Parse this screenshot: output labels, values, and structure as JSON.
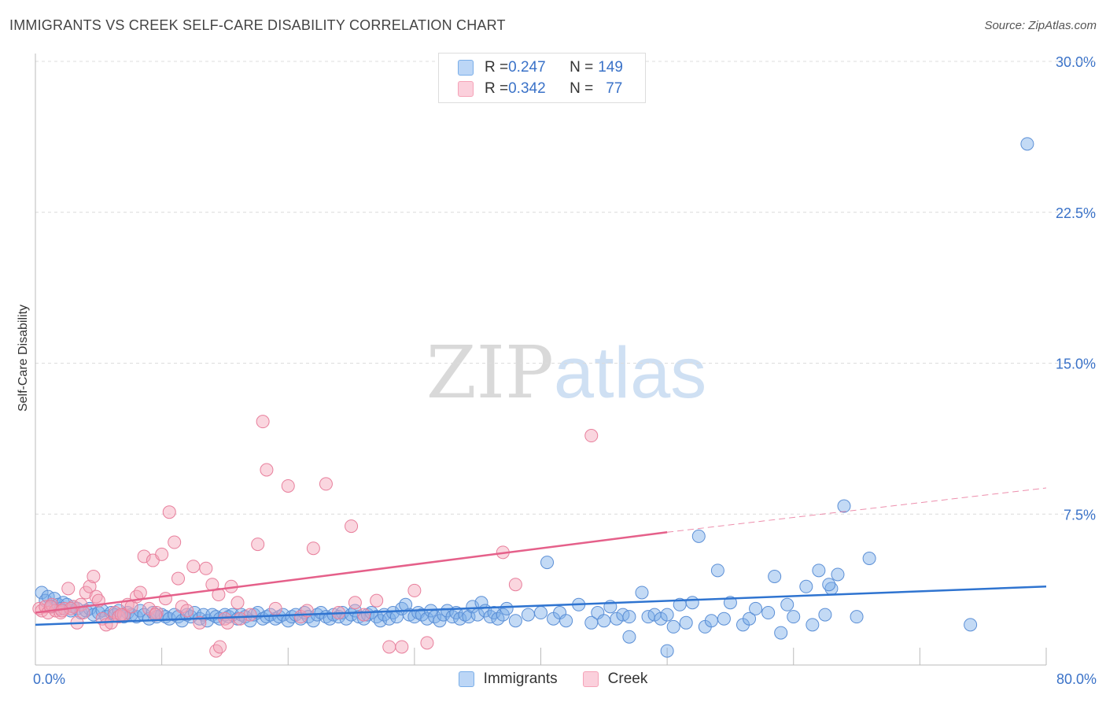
{
  "title": "IMMIGRANTS VS CREEK SELF-CARE DISABILITY CORRELATION CHART",
  "source": "Source: ZipAtlas.com",
  "watermark": {
    "zip": "ZIP",
    "atlas": "atlas"
  },
  "legend_top": [
    {
      "r_label": "R = ",
      "r_value": "0.247",
      "n_label": "N = ",
      "n_value": "149"
    },
    {
      "r_label": "R = ",
      "r_value": "0.342",
      "n_label": "N = ",
      "n_value": "77"
    }
  ],
  "chart_data": {
    "type": "scatter",
    "ylabel": "Self-Care Disability",
    "xlim": [
      0,
      80
    ],
    "ylim": [
      0,
      30
    ],
    "x_tick_labels": [
      {
        "value": 0,
        "label": "0.0%"
      },
      {
        "value": 80,
        "label": "80.0%"
      }
    ],
    "y_tick_labels": [
      {
        "value": 7.5,
        "label": "7.5%"
      },
      {
        "value": 15,
        "label": "15.0%"
      },
      {
        "value": 22.5,
        "label": "22.5%"
      },
      {
        "value": 30,
        "label": "30.0%"
      }
    ],
    "grid": true,
    "legend_position": "bottom",
    "series": [
      {
        "name": "Immigrants",
        "color": "#7aaee8",
        "stroke": "#5b8fd6",
        "trend": {
          "x0": 0,
          "y0": 2.0,
          "x1": 80,
          "y1": 3.9,
          "color": "#2f74d0"
        },
        "points": [
          [
            0.5,
            3.6
          ],
          [
            0.8,
            3.2
          ],
          [
            1,
            3.4
          ],
          [
            1.3,
            2.9
          ],
          [
            1.5,
            3.3
          ],
          [
            1.8,
            3.0
          ],
          [
            2,
            2.8
          ],
          [
            2.2,
            3.1
          ],
          [
            2.5,
            3.0
          ],
          [
            2.8,
            2.7
          ],
          [
            3,
            2.9
          ],
          [
            3.3,
            2.8
          ],
          [
            3.6,
            2.6
          ],
          [
            4,
            2.7
          ],
          [
            4.3,
            2.8
          ],
          [
            4.6,
            2.5
          ],
          [
            5,
            2.6
          ],
          [
            5.3,
            2.7
          ],
          [
            5.6,
            2.4
          ],
          [
            6,
            2.6
          ],
          [
            6.3,
            2.5
          ],
          [
            6.6,
            2.7
          ],
          [
            7,
            2.4
          ],
          [
            7.3,
            2.6
          ],
          [
            7.6,
            2.5
          ],
          [
            8,
            2.4
          ],
          [
            8.3,
            2.7
          ],
          [
            8.6,
            2.5
          ],
          [
            9,
            2.3
          ],
          [
            9.3,
            2.6
          ],
          [
            9.6,
            2.4
          ],
          [
            10,
            2.5
          ],
          [
            10.3,
            2.4
          ],
          [
            10.6,
            2.3
          ],
          [
            11,
            2.5
          ],
          [
            11.3,
            2.4
          ],
          [
            11.6,
            2.2
          ],
          [
            12,
            2.5
          ],
          [
            12.3,
            2.4
          ],
          [
            12.6,
            2.6
          ],
          [
            13,
            2.3
          ],
          [
            13.3,
            2.5
          ],
          [
            13.6,
            2.2
          ],
          [
            14,
            2.5
          ],
          [
            14.3,
            2.4
          ],
          [
            14.6,
            2.3
          ],
          [
            15,
            2.5
          ],
          [
            15.3,
            2.4
          ],
          [
            15.6,
            2.5
          ],
          [
            16,
            2.3
          ],
          [
            16.3,
            2.5
          ],
          [
            16.6,
            2.4
          ],
          [
            17,
            2.2
          ],
          [
            17.3,
            2.5
          ],
          [
            17.6,
            2.6
          ],
          [
            18,
            2.3
          ],
          [
            18.3,
            2.4
          ],
          [
            18.6,
            2.5
          ],
          [
            19,
            2.3
          ],
          [
            19.3,
            2.4
          ],
          [
            19.6,
            2.5
          ],
          [
            20,
            2.2
          ],
          [
            20.3,
            2.4
          ],
          [
            20.6,
            2.5
          ],
          [
            21,
            2.3
          ],
          [
            21.3,
            2.6
          ],
          [
            21.6,
            2.4
          ],
          [
            22,
            2.2
          ],
          [
            22.3,
            2.5
          ],
          [
            22.6,
            2.6
          ],
          [
            23,
            2.4
          ],
          [
            23.3,
            2.3
          ],
          [
            23.6,
            2.5
          ],
          [
            24,
            2.4
          ],
          [
            24.3,
            2.6
          ],
          [
            24.6,
            2.3
          ],
          [
            25,
            2.5
          ],
          [
            25.3,
            2.7
          ],
          [
            25.6,
            2.4
          ],
          [
            26,
            2.3
          ],
          [
            26.3,
            2.5
          ],
          [
            26.6,
            2.6
          ],
          [
            27,
            2.4
          ],
          [
            27.3,
            2.2
          ],
          [
            27.6,
            2.5
          ],
          [
            28,
            2.3
          ],
          [
            28.3,
            2.6
          ],
          [
            28.6,
            2.4
          ],
          [
            29,
            2.8
          ],
          [
            29.3,
            3.0
          ],
          [
            29.6,
            2.5
          ],
          [
            30,
            2.4
          ],
          [
            30.3,
            2.6
          ],
          [
            30.6,
            2.5
          ],
          [
            31,
            2.3
          ],
          [
            31.3,
            2.7
          ],
          [
            31.6,
            2.4
          ],
          [
            32,
            2.2
          ],
          [
            32.3,
            2.5
          ],
          [
            32.6,
            2.7
          ],
          [
            33,
            2.4
          ],
          [
            33.3,
            2.6
          ],
          [
            33.6,
            2.3
          ],
          [
            34,
            2.5
          ],
          [
            34.3,
            2.4
          ],
          [
            34.6,
            2.9
          ],
          [
            35,
            2.5
          ],
          [
            35.3,
            3.1
          ],
          [
            35.6,
            2.7
          ],
          [
            36,
            2.4
          ],
          [
            36.3,
            2.6
          ],
          [
            36.6,
            2.3
          ],
          [
            37,
            2.5
          ],
          [
            37.3,
            2.8
          ],
          [
            38,
            2.2
          ],
          [
            39,
            2.5
          ],
          [
            40,
            2.6
          ],
          [
            40.5,
            5.1
          ],
          [
            41,
            2.3
          ],
          [
            41.5,
            2.6
          ],
          [
            42,
            2.2
          ],
          [
            43,
            3.0
          ],
          [
            44,
            2.1
          ],
          [
            44.5,
            2.6
          ],
          [
            45,
            2.2
          ],
          [
            45.5,
            2.9
          ],
          [
            46,
            2.3
          ],
          [
            46.5,
            2.5
          ],
          [
            47,
            2.4
          ],
          [
            48,
            3.6
          ],
          [
            48.5,
            2.4
          ],
          [
            49,
            2.5
          ],
          [
            49.5,
            2.3
          ],
          [
            50,
            2.5
          ],
          [
            50.5,
            1.9
          ],
          [
            51,
            3.0
          ],
          [
            51.5,
            2.1
          ],
          [
            52,
            3.1
          ],
          [
            52.5,
            6.4
          ],
          [
            53,
            1.9
          ],
          [
            53.5,
            2.2
          ],
          [
            54,
            4.7
          ],
          [
            54.5,
            2.3
          ],
          [
            55,
            3.1
          ],
          [
            56,
            2.0
          ],
          [
            56.5,
            2.3
          ],
          [
            57,
            2.8
          ],
          [
            58,
            2.6
          ],
          [
            59,
            1.6
          ],
          [
            59.5,
            3.0
          ],
          [
            60,
            2.4
          ],
          [
            61,
            3.9
          ],
          [
            61.5,
            2.0
          ],
          [
            62,
            4.7
          ],
          [
            62.5,
            2.5
          ],
          [
            63,
            3.8
          ],
          [
            64,
            7.9
          ],
          [
            65,
            2.4
          ],
          [
            66,
            5.3
          ],
          [
            62.8,
            4.0
          ],
          [
            63.5,
            4.5
          ],
          [
            58.5,
            4.4
          ],
          [
            50,
            0.7
          ],
          [
            47,
            1.4
          ],
          [
            78.5,
            25.9
          ],
          [
            74,
            2.0
          ]
        ]
      },
      {
        "name": "Creek",
        "color": "#f5a3b8",
        "stroke": "#e87f9c",
        "trend": {
          "x0": 0,
          "y0": 2.6,
          "x1": 50,
          "y1": 6.6,
          "color": "#e5608a",
          "dashed_to": {
            "x": 80,
            "y": 8.8
          }
        },
        "points": [
          [
            0.3,
            2.8
          ],
          [
            0.5,
            2.7
          ],
          [
            0.8,
            2.9
          ],
          [
            1,
            2.6
          ],
          [
            1.3,
            3.0
          ],
          [
            1.6,
            2.7
          ],
          [
            2,
            2.6
          ],
          [
            2.3,
            2.8
          ],
          [
            2.6,
            3.8
          ],
          [
            3,
            2.9
          ],
          [
            3.3,
            2.1
          ],
          [
            3.6,
            3.0
          ],
          [
            4,
            3.6
          ],
          [
            4.3,
            3.9
          ],
          [
            4.6,
            4.4
          ],
          [
            4.8,
            3.4
          ],
          [
            5,
            3.2
          ],
          [
            5.3,
            2.3
          ],
          [
            5.6,
            2.0
          ],
          [
            6,
            2.1
          ],
          [
            6.3,
            2.6
          ],
          [
            6.6,
            2.4
          ],
          [
            7,
            2.5
          ],
          [
            7.3,
            3.0
          ],
          [
            7.6,
            2.9
          ],
          [
            8,
            3.4
          ],
          [
            8.3,
            3.6
          ],
          [
            8.6,
            5.4
          ],
          [
            9,
            2.8
          ],
          [
            9.3,
            5.2
          ],
          [
            9.6,
            2.6
          ],
          [
            10,
            5.5
          ],
          [
            10.3,
            3.3
          ],
          [
            10.6,
            7.6
          ],
          [
            11,
            6.1
          ],
          [
            11.3,
            4.3
          ],
          [
            11.6,
            2.9
          ],
          [
            12,
            2.7
          ],
          [
            12.5,
            4.9
          ],
          [
            13,
            2.1
          ],
          [
            13.5,
            4.8
          ],
          [
            14,
            4.0
          ],
          [
            14.5,
            3.5
          ],
          [
            15,
            2.3
          ],
          [
            15.5,
            3.9
          ],
          [
            16,
            3.1
          ],
          [
            17,
            2.5
          ],
          [
            17.6,
            6.0
          ],
          [
            18,
            12.1
          ],
          [
            18.3,
            9.7
          ],
          [
            19,
            2.8
          ],
          [
            20,
            8.9
          ],
          [
            21,
            2.4
          ],
          [
            21.5,
            2.7
          ],
          [
            22,
            5.8
          ],
          [
            23,
            9.0
          ],
          [
            24,
            2.6
          ],
          [
            25,
            6.9
          ],
          [
            25.3,
            3.1
          ],
          [
            26,
            2.5
          ],
          [
            27,
            3.2
          ],
          [
            28,
            0.9
          ],
          [
            29,
            0.9
          ],
          [
            30,
            3.7
          ],
          [
            31,
            1.1
          ],
          [
            37,
            5.6
          ],
          [
            38,
            4.0
          ],
          [
            44,
            11.4
          ],
          [
            14.3,
            0.7
          ],
          [
            14.6,
            0.9
          ],
          [
            9.5,
            2.5
          ],
          [
            6.8,
            2.5
          ],
          [
            3.8,
            2.6
          ],
          [
            2.8,
            2.8
          ],
          [
            1.2,
            2.9
          ],
          [
            2.1,
            2.7
          ],
          [
            15.2,
            2.1
          ],
          [
            16.2,
            2.3
          ]
        ]
      }
    ]
  }
}
